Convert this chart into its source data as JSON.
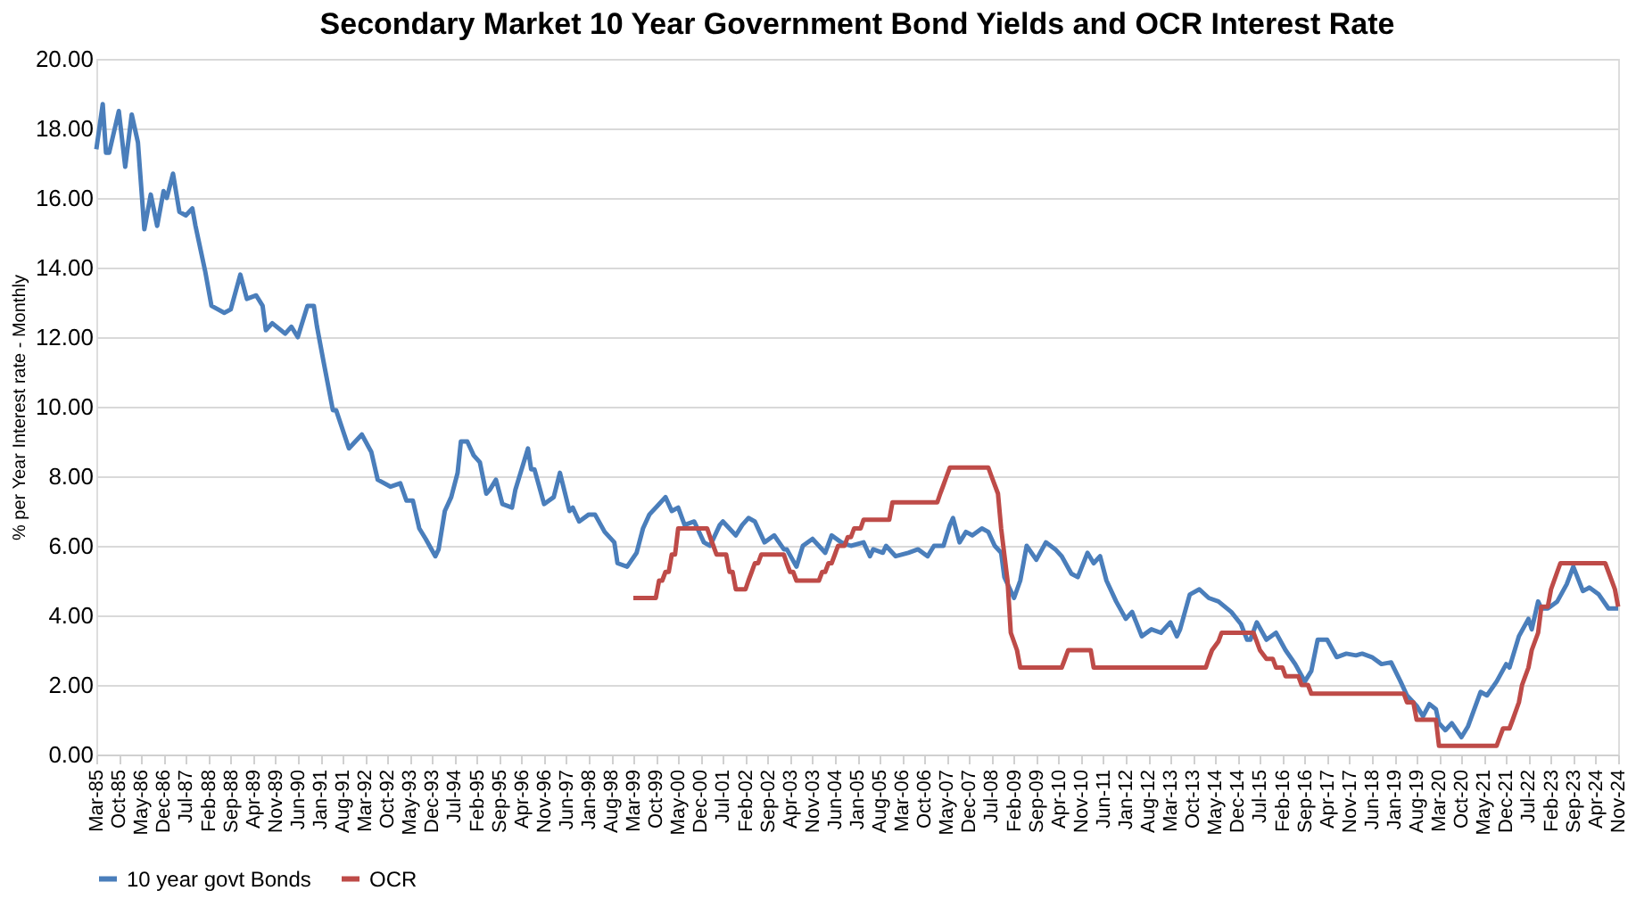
{
  "chart_data": {
    "type": "line",
    "title": "Secondary Market 10 Year Government Bond Yields and OCR Interest Rate",
    "ylabel": "% per Year Interest rate - Monthly",
    "xlim": [
      "1985-03",
      "2024-11"
    ],
    "xticks": [
      {
        "value": "1985-03",
        "label": "Mar-85"
      },
      {
        "value": "1985-10",
        "label": "Oct-85"
      },
      {
        "value": "1986-05",
        "label": "May-86"
      },
      {
        "value": "1986-12",
        "label": "Dec-86"
      },
      {
        "value": "1987-07",
        "label": "Jul-87"
      },
      {
        "value": "1988-02",
        "label": "Feb-88"
      },
      {
        "value": "1988-09",
        "label": "Sep-88"
      },
      {
        "value": "1989-04",
        "label": "Apr-89"
      },
      {
        "value": "1989-11",
        "label": "Nov-89"
      },
      {
        "value": "1990-06",
        "label": "Jun-90"
      },
      {
        "value": "1991-01",
        "label": "Jan-91"
      },
      {
        "value": "1991-08",
        "label": "Aug-91"
      },
      {
        "value": "1992-03",
        "label": "Mar-92"
      },
      {
        "value": "1992-10",
        "label": "Oct-92"
      },
      {
        "value": "1993-05",
        "label": "May-93"
      },
      {
        "value": "1993-12",
        "label": "Dec-93"
      },
      {
        "value": "1994-07",
        "label": "Jul-94"
      },
      {
        "value": "1995-02",
        "label": "Feb-95"
      },
      {
        "value": "1995-09",
        "label": "Sep-95"
      },
      {
        "value": "1996-04",
        "label": "Apr-96"
      },
      {
        "value": "1996-11",
        "label": "Nov-96"
      },
      {
        "value": "1997-06",
        "label": "Jun-97"
      },
      {
        "value": "1998-01",
        "label": "Jan-98"
      },
      {
        "value": "1998-08",
        "label": "Aug-98"
      },
      {
        "value": "1999-03",
        "label": "Mar-99"
      },
      {
        "value": "1999-10",
        "label": "Oct-99"
      },
      {
        "value": "2000-05",
        "label": "May-00"
      },
      {
        "value": "2000-12",
        "label": "Dec-00"
      },
      {
        "value": "2001-07",
        "label": "Jul-01"
      },
      {
        "value": "2002-02",
        "label": "Feb-02"
      },
      {
        "value": "2002-09",
        "label": "Sep-02"
      },
      {
        "value": "2003-04",
        "label": "Apr-03"
      },
      {
        "value": "2003-11",
        "label": "Nov-03"
      },
      {
        "value": "2004-06",
        "label": "Jun-04"
      },
      {
        "value": "2005-01",
        "label": "Jan-05"
      },
      {
        "value": "2005-08",
        "label": "Aug-05"
      },
      {
        "value": "2006-03",
        "label": "Mar-06"
      },
      {
        "value": "2006-10",
        "label": "Oct-06"
      },
      {
        "value": "2007-05",
        "label": "May-07"
      },
      {
        "value": "2007-12",
        "label": "Dec-07"
      },
      {
        "value": "2008-07",
        "label": "Jul-08"
      },
      {
        "value": "2009-02",
        "label": "Feb-09"
      },
      {
        "value": "2009-09",
        "label": "Sep-09"
      },
      {
        "value": "2010-04",
        "label": "Apr-10"
      },
      {
        "value": "2010-11",
        "label": "Nov-10"
      },
      {
        "value": "2011-06",
        "label": "Jun-11"
      },
      {
        "value": "2012-01",
        "label": "Jan-12"
      },
      {
        "value": "2012-08",
        "label": "Aug-12"
      },
      {
        "value": "2013-03",
        "label": "Mar-13"
      },
      {
        "value": "2013-10",
        "label": "Oct-13"
      },
      {
        "value": "2014-05",
        "label": "May-14"
      },
      {
        "value": "2014-12",
        "label": "Dec-14"
      },
      {
        "value": "2015-07",
        "label": "Jul-15"
      },
      {
        "value": "2016-02",
        "label": "Feb-16"
      },
      {
        "value": "2016-09",
        "label": "Sep-16"
      },
      {
        "value": "2017-04",
        "label": "Apr-17"
      },
      {
        "value": "2017-11",
        "label": "Nov-17"
      },
      {
        "value": "2018-06",
        "label": "Jun-18"
      },
      {
        "value": "2019-01",
        "label": "Jan-19"
      },
      {
        "value": "2019-08",
        "label": "Aug-19"
      },
      {
        "value": "2020-03",
        "label": "Mar-20"
      },
      {
        "value": "2020-10",
        "label": "Oct-20"
      },
      {
        "value": "2021-05",
        "label": "May-21"
      },
      {
        "value": "2021-12",
        "label": "Dec-21"
      },
      {
        "value": "2022-07",
        "label": "Jul-22"
      },
      {
        "value": "2023-02",
        "label": "Feb-23"
      },
      {
        "value": "2023-09",
        "label": "Sep-23"
      },
      {
        "value": "2024-04",
        "label": "Apr-24"
      },
      {
        "value": "2024-11",
        "label": "Nov-24"
      }
    ],
    "ylim": [
      0,
      20
    ],
    "yticks": [
      {
        "value": 0,
        "label": "0.00"
      },
      {
        "value": 2,
        "label": "2.00"
      },
      {
        "value": 4,
        "label": "4.00"
      },
      {
        "value": 6,
        "label": "6.00"
      },
      {
        "value": 8,
        "label": "8.00"
      },
      {
        "value": 10,
        "label": "10.00"
      },
      {
        "value": 12,
        "label": "12.00"
      },
      {
        "value": 14,
        "label": "14.00"
      },
      {
        "value": 16,
        "label": "16.00"
      },
      {
        "value": 18,
        "label": "18.00"
      },
      {
        "value": 20,
        "label": "20.00"
      }
    ],
    "grid": "y",
    "legend": "bottom",
    "series": [
      {
        "name": "10 year govt Bonds",
        "color": "#4a7ebb",
        "x": [
          "1985-03",
          "1985-05",
          "1985-06",
          "1985-07",
          "1985-10",
          "1985-12",
          "1986-02",
          "1986-04",
          "1986-06",
          "1986-08",
          "1986-10",
          "1986-12",
          "1987-01",
          "1987-03",
          "1987-05",
          "1987-07",
          "1987-09",
          "1987-10",
          "1988-01",
          "1988-03",
          "1988-07",
          "1988-09",
          "1988-12",
          "1989-02",
          "1989-05",
          "1989-07",
          "1989-08",
          "1989-10",
          "1990-02",
          "1990-04",
          "1990-06",
          "1990-09",
          "1990-11",
          "1990-12",
          "1991-02",
          "1991-05",
          "1991-06",
          "1991-10",
          "1992-02",
          "1992-05",
          "1992-07",
          "1992-11",
          "1993-02",
          "1993-04",
          "1993-06",
          "1993-08",
          "1993-10",
          "1994-01",
          "1994-02",
          "1994-04",
          "1994-06",
          "1994-08",
          "1994-09",
          "1994-11",
          "1995-01",
          "1995-03",
          "1995-05",
          "1995-06",
          "1995-08",
          "1995-10",
          "1996-01",
          "1996-02",
          "1996-06",
          "1996-07",
          "1996-08",
          "1996-11",
          "1997-02",
          "1997-04",
          "1997-07",
          "1997-08",
          "1997-10",
          "1998-01",
          "1998-03",
          "1998-06",
          "1998-09",
          "1998-10",
          "1999-01",
          "1999-04",
          "1999-06",
          "1999-08",
          "1999-11",
          "2000-01",
          "2000-03",
          "2000-05",
          "2000-07",
          "2000-10",
          "2001-01",
          "2001-03",
          "2001-06",
          "2001-07",
          "2001-11",
          "2002-01",
          "2002-03",
          "2002-05",
          "2002-08",
          "2002-11",
          "2003-02",
          "2003-03",
          "2003-06",
          "2003-08",
          "2003-11",
          "2004-03",
          "2004-05",
          "2004-08",
          "2004-11",
          "2005-03",
          "2005-05",
          "2005-06",
          "2005-09",
          "2005-10",
          "2006-01",
          "2006-05",
          "2006-08",
          "2006-11",
          "2007-01",
          "2007-04",
          "2007-06",
          "2007-07",
          "2007-09",
          "2007-11",
          "2008-01",
          "2008-04",
          "2008-06",
          "2008-08",
          "2008-10",
          "2008-11",
          "2009-02",
          "2009-04",
          "2009-06",
          "2009-09",
          "2009-12",
          "2010-03",
          "2010-05",
          "2010-08",
          "2010-10",
          "2011-01",
          "2011-03",
          "2011-05",
          "2011-07",
          "2011-10",
          "2012-01",
          "2012-03",
          "2012-06",
          "2012-09",
          "2012-12",
          "2013-03",
          "2013-05",
          "2013-06",
          "2013-09",
          "2013-12",
          "2014-03",
          "2014-06",
          "2014-10",
          "2015-01",
          "2015-03",
          "2015-04",
          "2015-06",
          "2015-09",
          "2015-12",
          "2016-03",
          "2016-06",
          "2016-09",
          "2016-11",
          "2017-01",
          "2017-04",
          "2017-07",
          "2017-10",
          "2018-01",
          "2018-03",
          "2018-06",
          "2018-09",
          "2018-12",
          "2019-03",
          "2019-05",
          "2019-08",
          "2019-10",
          "2019-12",
          "2020-02",
          "2020-03",
          "2020-05",
          "2020-07",
          "2020-10",
          "2020-12",
          "2021-04",
          "2021-06",
          "2021-09",
          "2021-12",
          "2022-01",
          "2022-04",
          "2022-07",
          "2022-08",
          "2022-10",
          "2022-11",
          "2023-01",
          "2023-04",
          "2023-07",
          "2023-09",
          "2023-12",
          "2024-02",
          "2024-05",
          "2024-08",
          "2024-11"
        ],
        "values": [
          17.4,
          18.7,
          17.3,
          17.3,
          18.5,
          16.9,
          18.4,
          17.6,
          15.1,
          16.1,
          15.2,
          16.2,
          16.0,
          16.7,
          15.6,
          15.5,
          15.7,
          15.2,
          13.9,
          12.9,
          12.7,
          12.8,
          13.8,
          13.1,
          13.2,
          12.9,
          12.2,
          12.4,
          12.1,
          12.3,
          12.0,
          12.9,
          12.9,
          12.3,
          11.3,
          9.9,
          9.9,
          8.8,
          9.2,
          8.7,
          7.9,
          7.7,
          7.8,
          7.3,
          7.3,
          6.5,
          6.2,
          5.7,
          5.9,
          7.0,
          7.4,
          8.1,
          9.0,
          9.0,
          8.6,
          8.4,
          7.5,
          7.6,
          7.9,
          7.2,
          7.1,
          7.6,
          8.8,
          8.2,
          8.2,
          7.2,
          7.4,
          8.1,
          7.0,
          7.1,
          6.7,
          6.9,
          6.9,
          6.4,
          6.1,
          5.5,
          5.4,
          5.8,
          6.5,
          6.9,
          7.2,
          7.4,
          7.0,
          7.1,
          6.6,
          6.7,
          6.1,
          6.0,
          6.6,
          6.7,
          6.3,
          6.6,
          6.8,
          6.7,
          6.1,
          6.3,
          5.9,
          5.9,
          5.4,
          6.0,
          6.2,
          5.8,
          6.3,
          6.1,
          6.0,
          6.1,
          5.7,
          5.9,
          5.8,
          6.0,
          5.7,
          5.8,
          5.9,
          5.7,
          6.0,
          6.0,
          6.6,
          6.8,
          6.1,
          6.4,
          6.3,
          6.5,
          6.4,
          6.0,
          5.8,
          5.1,
          4.5,
          5.0,
          6.0,
          5.6,
          6.1,
          5.9,
          5.7,
          5.2,
          5.1,
          5.8,
          5.5,
          5.7,
          5.0,
          4.4,
          3.9,
          4.1,
          3.4,
          3.6,
          3.5,
          3.8,
          3.4,
          3.6,
          4.6,
          4.75,
          4.5,
          4.4,
          4.1,
          3.75,
          3.3,
          3.3,
          3.8,
          3.3,
          3.5,
          3.0,
          2.6,
          2.1,
          2.4,
          3.3,
          3.3,
          2.8,
          2.9,
          2.85,
          2.9,
          2.8,
          2.6,
          2.65,
          2.1,
          1.7,
          1.4,
          1.1,
          1.45,
          1.3,
          0.9,
          0.7,
          0.9,
          0.5,
          0.8,
          1.8,
          1.7,
          2.1,
          2.6,
          2.5,
          3.4,
          3.9,
          3.6,
          4.4,
          4.2,
          4.2,
          4.4,
          4.9,
          5.4,
          4.7,
          4.8,
          4.6,
          4.2,
          4.2
        ]
      },
      {
        "name": "OCR",
        "color": "#be4b48",
        "x": [
          "1999-03",
          "1999-10",
          "1999-11",
          "1999-12",
          "2000-01",
          "2000-02",
          "2000-03",
          "2000-04",
          "2000-05",
          "2001-02",
          "2001-03",
          "2001-04",
          "2001-05",
          "2001-08",
          "2001-09",
          "2001-10",
          "2001-11",
          "2002-02",
          "2002-03",
          "2002-04",
          "2002-05",
          "2002-06",
          "2002-07",
          "2003-02",
          "2003-03",
          "2003-04",
          "2003-05",
          "2003-06",
          "2004-01",
          "2004-02",
          "2004-03",
          "2004-04",
          "2004-05",
          "2004-06",
          "2004-07",
          "2004-09",
          "2004-10",
          "2004-11",
          "2004-12",
          "2005-02",
          "2005-03",
          "2005-11",
          "2005-12",
          "2007-02",
          "2007-03",
          "2007-04",
          "2007-05",
          "2007-06",
          "2008-06",
          "2008-07",
          "2008-09",
          "2008-10",
          "2008-12",
          "2009-01",
          "2009-03",
          "2009-04",
          "2010-05",
          "2010-06",
          "2010-07",
          "2011-02",
          "2011-03",
          "2014-02",
          "2014-03",
          "2014-04",
          "2014-06",
          "2014-07",
          "2015-05",
          "2015-06",
          "2015-07",
          "2015-09",
          "2015-11",
          "2015-12",
          "2016-02",
          "2016-03",
          "2016-07",
          "2016-08",
          "2016-10",
          "2016-11",
          "2019-04",
          "2019-05",
          "2019-07",
          "2019-08",
          "2020-02",
          "2020-03",
          "2021-09",
          "2021-10",
          "2021-11",
          "2022-01",
          "2022-02",
          "2022-04",
          "2022-05",
          "2022-07",
          "2022-08",
          "2022-10",
          "2022-11",
          "2023-01",
          "2023-02",
          "2023-04",
          "2023-05",
          "2024-07",
          "2024-08",
          "2024-10",
          "2024-11"
        ],
        "values": [
          4.5,
          4.5,
          5.0,
          5.0,
          5.25,
          5.25,
          5.75,
          5.75,
          6.5,
          6.5,
          6.25,
          6.0,
          5.75,
          5.75,
          5.25,
          5.25,
          4.75,
          4.75,
          5.0,
          5.25,
          5.5,
          5.5,
          5.75,
          5.75,
          5.5,
          5.25,
          5.25,
          5.0,
          5.0,
          5.25,
          5.25,
          5.5,
          5.5,
          5.75,
          6.0,
          6.0,
          6.25,
          6.25,
          6.5,
          6.5,
          6.75,
          6.75,
          7.25,
          7.25,
          7.5,
          7.75,
          8.0,
          8.25,
          8.25,
          8.0,
          7.5,
          6.5,
          5.0,
          3.5,
          3.0,
          2.5,
          2.5,
          2.75,
          3.0,
          3.0,
          2.5,
          2.5,
          2.75,
          3.0,
          3.25,
          3.5,
          3.5,
          3.25,
          3.0,
          2.75,
          2.75,
          2.5,
          2.5,
          2.25,
          2.25,
          2.0,
          2.0,
          1.75,
          1.75,
          1.5,
          1.5,
          1.0,
          1.0,
          0.25,
          0.25,
          0.5,
          0.75,
          0.75,
          1.0,
          1.5,
          2.0,
          2.5,
          3.0,
          3.5,
          4.25,
          4.25,
          4.75,
          5.25,
          5.5,
          5.5,
          5.25,
          4.75,
          4.25
        ]
      }
    ]
  }
}
